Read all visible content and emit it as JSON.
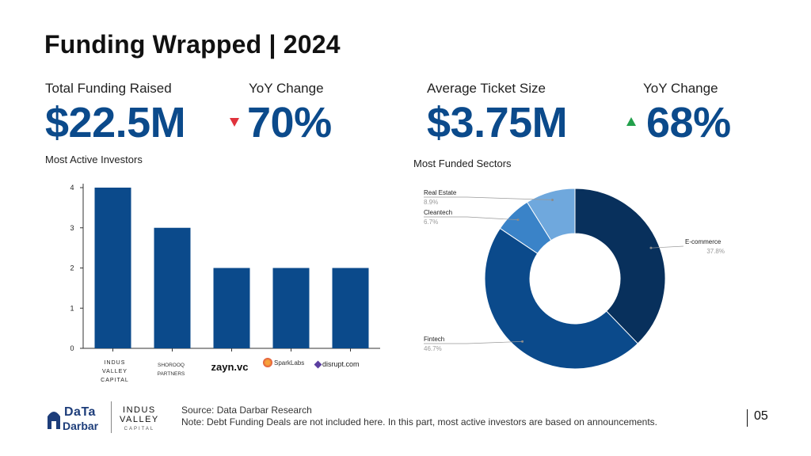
{
  "header": {
    "title": "Funding Wrapped | 2024"
  },
  "kpis": {
    "total_funding": {
      "label": "Total Funding Raised",
      "value": "$22.5M"
    },
    "total_yoy": {
      "label": "YoY Change",
      "value": "70%",
      "direction": "down",
      "color": "#e0323c"
    },
    "avg_ticket": {
      "label": "Average Ticket Size",
      "value": "$3.75M"
    },
    "avg_yoy": {
      "label": "YoY Change",
      "value": "68%",
      "direction": "up",
      "color": "#22a04b"
    }
  },
  "investors_chart": {
    "title": "Most Active Investors",
    "logos": [
      "INDUS VALLEY CAPITAL",
      "SHOROOQ PARTNERS",
      "zayn.vc",
      "SparkLabs",
      "disrupt.com"
    ]
  },
  "sectors_chart": {
    "title": "Most Funded Sectors"
  },
  "chart_data": [
    {
      "type": "bar",
      "categories": [
        "Indus Valley Capital",
        "Shorooq Partners",
        "zayn.vc",
        "SparkLabs",
        "disrupt.com"
      ],
      "values": [
        4,
        3,
        2,
        2,
        2
      ],
      "ylim": [
        0,
        4
      ],
      "yticks": [
        0,
        1,
        2,
        3,
        4
      ],
      "color": "#0b4a8b"
    },
    {
      "type": "pie",
      "donut": true,
      "slices": [
        {
          "label": "E-commerce",
          "value": 37.8,
          "pct": "37.8%",
          "color": "#08305c"
        },
        {
          "label": "Fintech",
          "value": 46.7,
          "pct": "46.7%",
          "color": "#0b4a8b"
        },
        {
          "label": "Cleantech",
          "value": 6.7,
          "pct": "6.7%",
          "color": "#3a83c8"
        },
        {
          "label": "Real Estate",
          "value": 8.9,
          "pct": "8.9%",
          "color": "#6fa8dd"
        }
      ]
    }
  ],
  "footer": {
    "brand_top": "DaTa",
    "brand_bottom": "Darbar",
    "partner_line1": "INDUS",
    "partner_line2": "VALLEY",
    "partner_line3": "CAPITAL",
    "source": "Source: Data Darbar Research",
    "note": "Note: Debt Funding Deals are not included here. In this part, most active investors are based on announcements.",
    "page": "05"
  }
}
